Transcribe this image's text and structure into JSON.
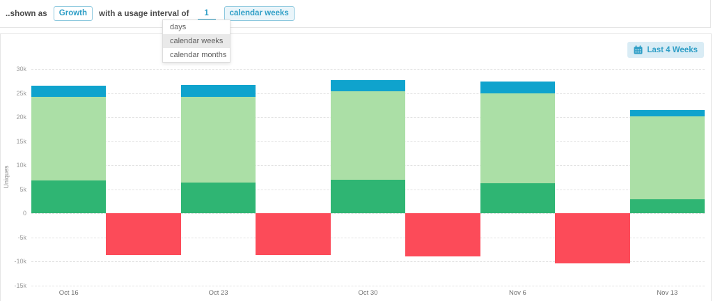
{
  "header": {
    "prefix": "..shown as",
    "metric_chip": "Growth",
    "middle": "with a usage interval of",
    "interval_value": "1",
    "unit_chip": "calendar weeks",
    "dropdown": {
      "options": [
        "days",
        "calendar weeks",
        "calendar months"
      ],
      "selected": "calendar weeks"
    }
  },
  "toolbar": {
    "range_button": "Last 4 Weeks",
    "range_button_icon": "calendar-icon"
  },
  "colors": {
    "accent": "#2E9EC6",
    "chip_border": "#8CC8DE",
    "button_bg": "#D9ECF5",
    "panel_border": "#E5E5E5",
    "gridline": "#E2E2E2",
    "tick_text": "#9A9A9A"
  },
  "chart_data": {
    "type": "bar",
    "stacked": true,
    "title": "",
    "xlabel": "",
    "ylabel": "Uniques",
    "ylim": [
      -15000,
      30000
    ],
    "grid": "horizontal-dashed",
    "legend": "none",
    "categories": [
      "Oct 16",
      "Oct 23",
      "Oct 30",
      "Nov 6",
      "Nov 13"
    ],
    "series": [
      {
        "name": "green-base",
        "color": "#2FB573",
        "values": [
          6800,
          6400,
          7000,
          6200,
          2900
        ]
      },
      {
        "name": "green-light",
        "color": "#ABDFA6",
        "values": [
          17400,
          17800,
          18300,
          18700,
          17200
        ]
      },
      {
        "name": "blue-top",
        "color": "#0FA3CD",
        "values": [
          2300,
          2400,
          2400,
          2500,
          1300
        ]
      },
      {
        "name": "red-negative",
        "color": "#FC4B59",
        "position": "between-categories",
        "values": [
          -8700,
          -8600,
          -8900,
          -10300
        ]
      }
    ],
    "yticks": [
      {
        "label": "30k",
        "value": 30000
      },
      {
        "label": "25k",
        "value": 25000
      },
      {
        "label": "20k",
        "value": 20000
      },
      {
        "label": "15k",
        "value": 15000
      },
      {
        "label": "10k",
        "value": 10000
      },
      {
        "label": "5k",
        "value": 5000
      },
      {
        "label": "0",
        "value": 0
      },
      {
        "label": "-5k",
        "value": -5000
      },
      {
        "label": "-10k",
        "value": -10000
      },
      {
        "label": "-15k",
        "value": -15000
      }
    ]
  }
}
